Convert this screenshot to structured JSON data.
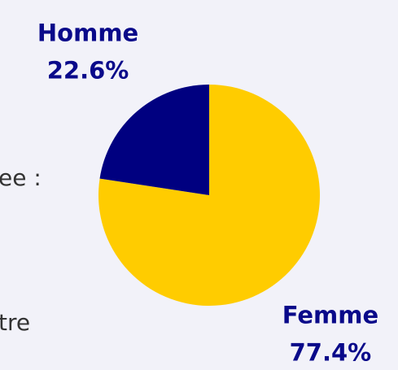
{
  "page_text": [
    "ee :",
    "tre"
  ],
  "chart_data": {
    "type": "pie",
    "categories": [
      "Femme",
      "Homme"
    ],
    "values": [
      77.4,
      22.6
    ],
    "value_labels": [
      "77.4%",
      "22.6%"
    ],
    "colors": [
      "#ffcc00",
      "#000080"
    ]
  }
}
